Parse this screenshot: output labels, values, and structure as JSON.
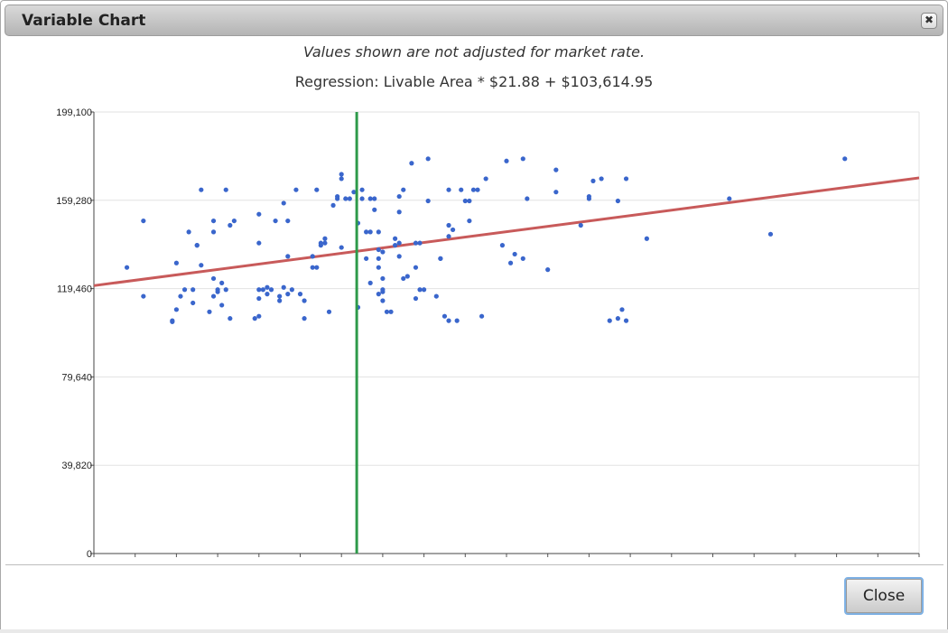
{
  "dialog": {
    "title": "Variable Chart",
    "close_icon_glyph": "✖",
    "note": "Values shown are not adjusted for market rate.",
    "regression_text": "Regression: Livable Area * $21.88 + $103,614.95",
    "close_button_label": "Close"
  },
  "colors": {
    "point": "#3a66cc",
    "regression_line": "#c85a5a",
    "marker_line": "#2e9a4a",
    "grid": "#e2e2e2"
  },
  "chart_data": {
    "type": "scatter",
    "title": "",
    "xlabel": "",
    "ylabel": "",
    "ylim": [
      0,
      199100
    ],
    "y_ticks": [
      "0",
      "39,820",
      "79,640",
      "119,460",
      "159,280",
      "199,100"
    ],
    "y_tick_values": [
      0,
      39820,
      79640,
      119460,
      159280,
      199100
    ],
    "x_range": [
      0,
      200
    ],
    "x_tick_count": 20,
    "x_tick_labels_shown": false,
    "grid": true,
    "regression": {
      "slope": 21.88,
      "intercept": 103614.95,
      "y_at_xmin": 120800,
      "y_at_xmax": 169400
    },
    "marker_x": 63.7,
    "points": [
      [
        8,
        129000
      ],
      [
        12,
        150000
      ],
      [
        12,
        116000
      ],
      [
        19,
        105000
      ],
      [
        19,
        104500
      ],
      [
        20,
        110000
      ],
      [
        20,
        131000
      ],
      [
        21,
        116000
      ],
      [
        22,
        119000
      ],
      [
        23,
        145000
      ],
      [
        24,
        113000
      ],
      [
        24,
        119000
      ],
      [
        25,
        139000
      ],
      [
        25,
        139000
      ],
      [
        26,
        130000
      ],
      [
        26,
        164000
      ],
      [
        28,
        109000
      ],
      [
        29,
        116000
      ],
      [
        29,
        145000
      ],
      [
        29,
        150000
      ],
      [
        29,
        124000
      ],
      [
        30,
        119000
      ],
      [
        30,
        118000
      ],
      [
        31,
        112000
      ],
      [
        31,
        122000
      ],
      [
        32,
        164000
      ],
      [
        32,
        119000
      ],
      [
        33,
        106000
      ],
      [
        33,
        148000
      ],
      [
        34,
        150000
      ],
      [
        39,
        106000
      ],
      [
        40,
        107000
      ],
      [
        40,
        153000
      ],
      [
        40,
        115000
      ],
      [
        40,
        140000
      ],
      [
        40,
        119000
      ],
      [
        41,
        119000
      ],
      [
        42,
        117000
      ],
      [
        42,
        120000
      ],
      [
        43,
        119000
      ],
      [
        44,
        150000
      ],
      [
        45,
        116000
      ],
      [
        45,
        114000
      ],
      [
        46,
        158000
      ],
      [
        46,
        120000
      ],
      [
        47,
        134000
      ],
      [
        47,
        117000
      ],
      [
        47,
        150000
      ],
      [
        48,
        119000
      ],
      [
        49,
        164000
      ],
      [
        50,
        117000
      ],
      [
        51,
        106000
      ],
      [
        51,
        114000
      ],
      [
        53,
        129000
      ],
      [
        53,
        134000
      ],
      [
        54,
        129000
      ],
      [
        54,
        164000
      ],
      [
        55,
        140000
      ],
      [
        55,
        139000
      ],
      [
        56,
        142000
      ],
      [
        56,
        140000
      ],
      [
        57,
        109000
      ],
      [
        58,
        157000
      ],
      [
        59,
        161000
      ],
      [
        59,
        160000
      ],
      [
        60,
        171000
      ],
      [
        60,
        138000
      ],
      [
        60,
        169000
      ],
      [
        61,
        160000
      ],
      [
        62,
        160000
      ],
      [
        63,
        163000
      ],
      [
        64,
        149000
      ],
      [
        64,
        111000
      ],
      [
        65,
        164000
      ],
      [
        65,
        160000
      ],
      [
        66,
        133000
      ],
      [
        66,
        145000
      ],
      [
        67,
        145000
      ],
      [
        67,
        122000
      ],
      [
        67,
        160000
      ],
      [
        68,
        155000
      ],
      [
        68,
        160000
      ],
      [
        69,
        117000
      ],
      [
        69,
        133000
      ],
      [
        69,
        129000
      ],
      [
        69,
        137000
      ],
      [
        69,
        145000
      ],
      [
        70,
        114000
      ],
      [
        70,
        136000
      ],
      [
        70,
        119000
      ],
      [
        70,
        124000
      ],
      [
        70,
        118000
      ],
      [
        71,
        109000
      ],
      [
        72,
        109000
      ],
      [
        73,
        142000
      ],
      [
        73,
        139000
      ],
      [
        74,
        161000
      ],
      [
        74,
        140000
      ],
      [
        74,
        134000
      ],
      [
        74,
        154000
      ],
      [
        75,
        164000
      ],
      [
        75,
        124000
      ],
      [
        76,
        125000
      ],
      [
        77,
        176000
      ],
      [
        78,
        129000
      ],
      [
        78,
        140000
      ],
      [
        78,
        115000
      ],
      [
        79,
        119000
      ],
      [
        79,
        140000
      ],
      [
        80,
        119000
      ],
      [
        81,
        178000
      ],
      [
        81,
        159000
      ],
      [
        83,
        116000
      ],
      [
        84,
        133000
      ],
      [
        84,
        133000
      ],
      [
        85,
        107000
      ],
      [
        86,
        143000
      ],
      [
        86,
        164000
      ],
      [
        86,
        148000
      ],
      [
        86,
        105000
      ],
      [
        87,
        146000
      ],
      [
        88,
        105000
      ],
      [
        89,
        164000
      ],
      [
        90,
        159000
      ],
      [
        91,
        150000
      ],
      [
        91,
        159000
      ],
      [
        92,
        164000
      ],
      [
        93,
        164000
      ],
      [
        94,
        107000
      ],
      [
        95,
        169000
      ],
      [
        99,
        139000
      ],
      [
        100,
        177000
      ],
      [
        101,
        131000
      ],
      [
        102,
        135000
      ],
      [
        104,
        178000
      ],
      [
        104,
        133000
      ],
      [
        105,
        160000
      ],
      [
        110,
        128000
      ],
      [
        112,
        163000
      ],
      [
        112,
        173000
      ],
      [
        118,
        148000
      ],
      [
        120,
        160000
      ],
      [
        120,
        161000
      ],
      [
        121,
        168000
      ],
      [
        123,
        169000
      ],
      [
        125,
        105000
      ],
      [
        127,
        106000
      ],
      [
        127,
        159000
      ],
      [
        128,
        110000
      ],
      [
        129,
        105000
      ],
      [
        129,
        169000
      ],
      [
        134,
        142000
      ],
      [
        154,
        160000
      ],
      [
        164,
        144000
      ],
      [
        182,
        178000
      ]
    ]
  }
}
